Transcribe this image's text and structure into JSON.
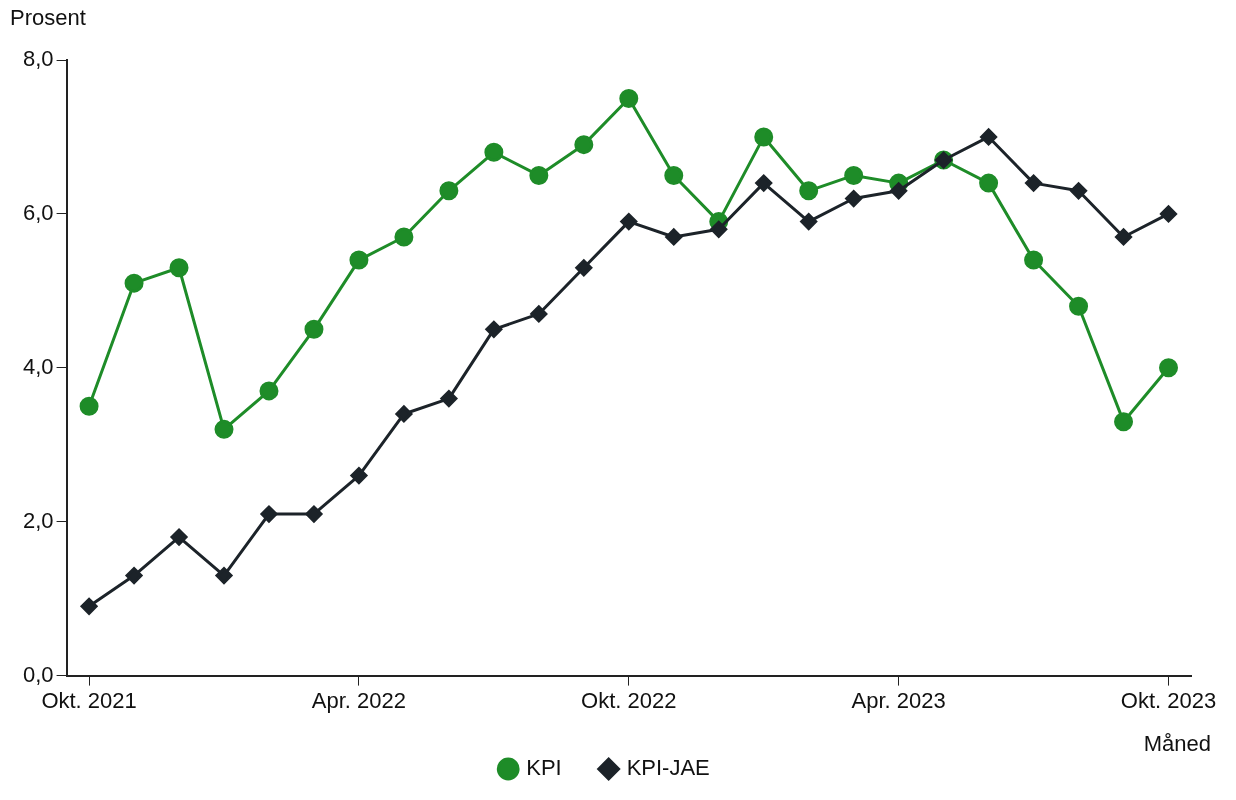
{
  "chart_data": {
    "type": "line",
    "ylabel": "Prosent",
    "xlabel": "Måned",
    "categories": [
      "Okt. 2021",
      null,
      null,
      null,
      null,
      null,
      "Apr. 2022",
      null,
      null,
      null,
      null,
      null,
      "Okt. 2022",
      null,
      null,
      null,
      null,
      null,
      "Apr. 2023",
      null,
      null,
      null,
      null,
      null,
      "Okt. 2023"
    ],
    "series": [
      {
        "name": "KPI",
        "color": "#1e8c28",
        "marker": "circle",
        "values": [
          3.5,
          5.1,
          5.3,
          3.2,
          3.7,
          4.5,
          5.4,
          5.7,
          6.3,
          6.8,
          6.5,
          6.9,
          7.5,
          6.5,
          5.9,
          7.0,
          6.3,
          6.5,
          6.4,
          6.7,
          6.4,
          5.4,
          4.8,
          3.3,
          4.0
        ]
      },
      {
        "name": "KPI-JAE",
        "color": "#1c2329",
        "marker": "diamond",
        "values": [
          0.9,
          1.3,
          1.8,
          1.3,
          2.1,
          2.1,
          2.6,
          3.4,
          3.6,
          4.5,
          4.7,
          5.3,
          5.9,
          5.7,
          5.8,
          6.4,
          5.9,
          6.2,
          6.3,
          6.7,
          7.0,
          6.4,
          6.3,
          5.7,
          6.0
        ]
      }
    ],
    "ylim": [
      0,
      8
    ],
    "yticks": [
      {
        "value": 0,
        "label": "0,0"
      },
      {
        "value": 2,
        "label": "2,0"
      },
      {
        "value": 4,
        "label": "4,0"
      },
      {
        "value": 6,
        "label": "6,0"
      },
      {
        "value": 8,
        "label": "8,0"
      }
    ],
    "grid": false,
    "legend": "bottom",
    "line_style": "solid"
  }
}
